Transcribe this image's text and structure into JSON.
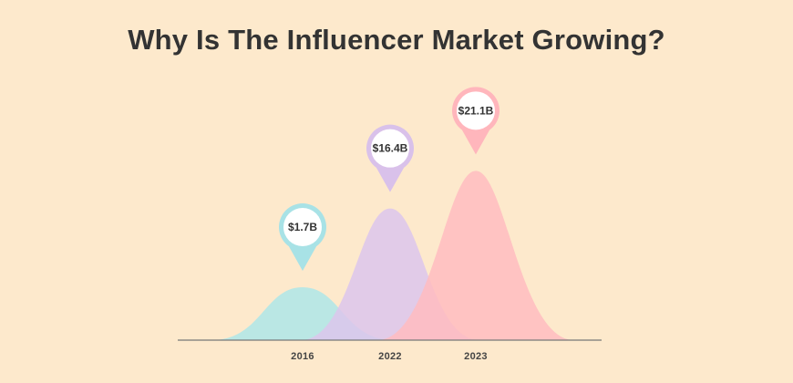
{
  "chart_data": {
    "type": "area",
    "title": "Why Is The Influencer Market Growing?",
    "xlabel": "",
    "ylabel": "",
    "categories": [
      "2016",
      "2022",
      "2023"
    ],
    "values": [
      1.7,
      16.4,
      21.1
    ],
    "value_labels": [
      "$1.7B",
      "$16.4B",
      "$21.1B"
    ],
    "ylim": [
      0,
      24
    ],
    "grid": false,
    "legend": "none",
    "colors": [
      "#aee6e8",
      "#dcc6ec",
      "#ffbcc0"
    ],
    "pin_colors": [
      "#a8e2e6",
      "#d9c1ea",
      "#ffb6bc"
    ],
    "axis_color": "#777777"
  }
}
